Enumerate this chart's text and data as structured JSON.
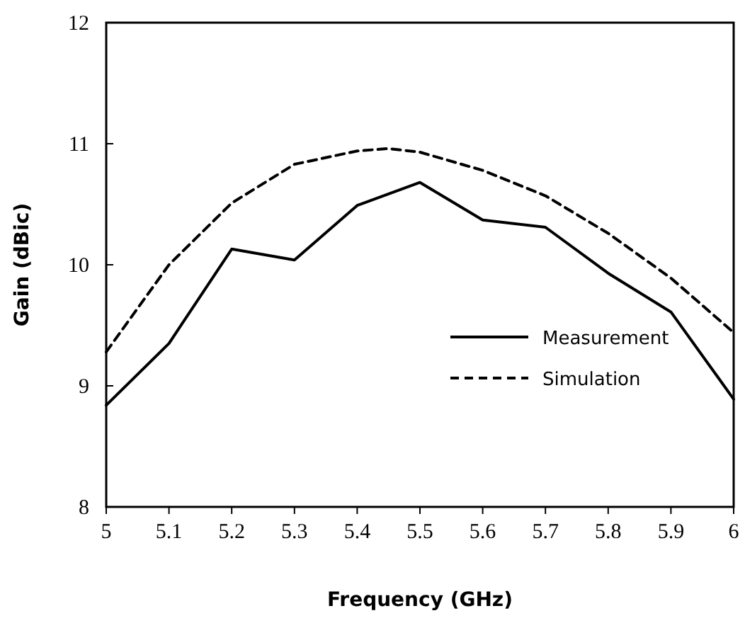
{
  "chart_data": {
    "type": "line",
    "xlabel": "Frequency (GHz)",
    "ylabel": "Gain (dBic)",
    "xlim": [
      5,
      6
    ],
    "xticks": [
      5,
      5.1,
      5.2,
      5.3,
      5.4,
      5.5,
      5.6,
      5.7,
      5.8,
      5.9,
      6
    ],
    "ylim": [
      8,
      12
    ],
    "yticks": [
      8,
      9,
      10,
      11,
      12
    ],
    "grid": false,
    "legend": "bottom right",
    "marker": "none",
    "series": [
      {
        "name": "Measurement",
        "color": "#000000",
        "line_style": "solid",
        "x": [
          5,
          5.1,
          5.2,
          5.3,
          5.4,
          5.5,
          5.6,
          5.7,
          5.8,
          5.9,
          6
        ],
        "values": [
          8.84,
          9.35,
          10.13,
          10.04,
          10.49,
          10.68,
          10.37,
          10.31,
          9.93,
          9.61,
          8.89
        ]
      },
      {
        "name": "Simulation",
        "color": "#000000",
        "line_style": "dashed",
        "x": [
          5,
          5.1,
          5.2,
          5.3,
          5.4,
          5.45,
          5.5,
          5.6,
          5.7,
          5.8,
          5.9,
          6
        ],
        "values": [
          9.28,
          10.0,
          10.51,
          10.83,
          10.94,
          10.96,
          10.93,
          10.78,
          10.57,
          10.26,
          9.89,
          9.44
        ]
      }
    ]
  }
}
